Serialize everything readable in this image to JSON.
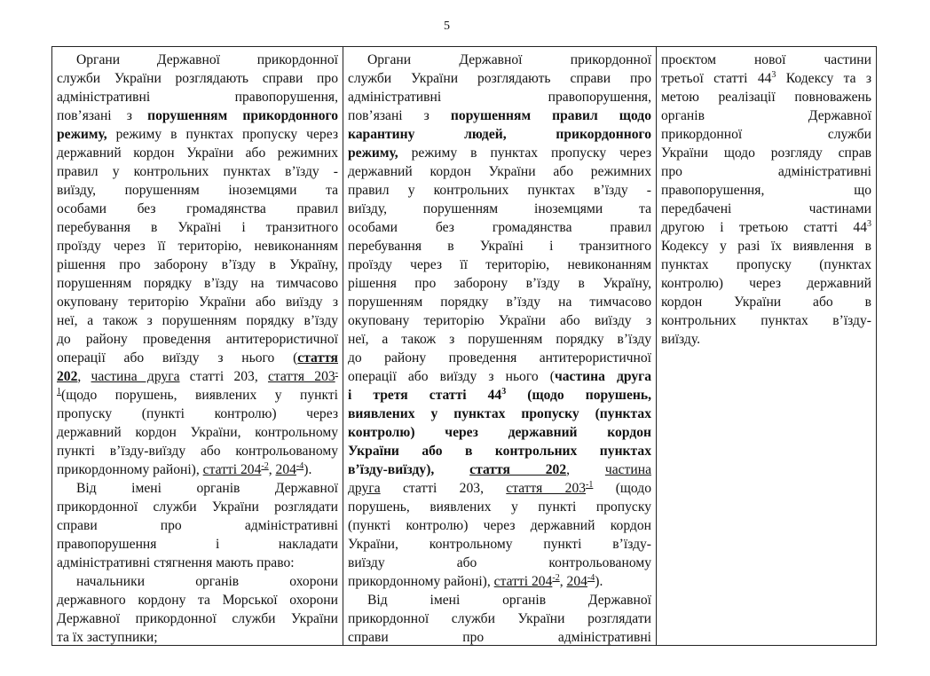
{
  "page_number": "5",
  "columns": [
    {
      "paragraphs": [
        {
          "lines": [
            [
              "Органи Державної прикордонної"
            ],
            [
              "служби України розглядають справи про"
            ],
            [
              "адміністративні правопорушення,"
            ],
            [
              "пов’язані з ",
              {
                "t": "порушенням прикордонного",
                "b": true
              }
            ],
            [
              {
                "t": "режиму,",
                "b": true
              },
              " режиму в пунктах пропуску через"
            ],
            [
              "державний кордон України або режимних"
            ],
            [
              "правил у контрольних пунктах в’їзду -"
            ],
            [
              "виїзду, порушенням іноземцями та"
            ],
            [
              "особами без громадянства правил"
            ],
            [
              "перебування в Україні і транзитного"
            ],
            [
              "проїзду через її територію, невиконанням"
            ],
            [
              "рішення про заборону в’їзду в Україну,"
            ],
            [
              "порушенням порядку в’їзду на тимчасово"
            ],
            [
              "окуповану територію України або виїзду з"
            ],
            [
              "неї, а також з порушенням порядку в’їзду"
            ],
            [
              "до району проведення антитерористичної"
            ],
            [
              "операції або виїзду з нього (",
              {
                "t": "стаття",
                "b": true,
                "u": true
              }
            ],
            [
              {
                "t": "202",
                "b": true,
                "u": true
              },
              ", ",
              {
                "t": "частина друга",
                "u": true
              },
              " статті 203, ",
              {
                "t": "стаття 203",
                "u": true
              },
              {
                "t": "-",
                "sup": true,
                "u": true
              }
            ],
            [
              {
                "t": "1",
                "sup": true,
                "u": true
              },
              "(щодо порушень, виявлених у пункті"
            ],
            [
              "пропуску (пункті контролю) через"
            ],
            [
              "державний кордон України, контрольному"
            ],
            [
              "пункті в’їзду-виїзду або контрольованому"
            ],
            [
              "прикордонному районі), ",
              {
                "t": "статті 204",
                "u": true
              },
              {
                "t": "-2",
                "sup": true,
                "u": true
              },
              ", ",
              {
                "t": "204",
                "u": true
              },
              {
                "t": "-4",
                "sup": true,
                "u": true
              },
              ")."
            ]
          ]
        },
        {
          "lines": [
            [
              "Від імені органів Державної"
            ],
            [
              "прикордонної служби України розглядати"
            ],
            [
              "справи про адміністративні"
            ],
            [
              "правопорушення і накладати"
            ],
            [
              "адміністративні стягнення мають право:"
            ]
          ]
        },
        {
          "lines": [
            [
              "начальники органів охорони"
            ],
            [
              "державного кордону та Морської охорони"
            ],
            [
              "Державної прикордонної служби України"
            ],
            [
              "та їх заступники;"
            ]
          ]
        }
      ]
    },
    {
      "paragraphs": [
        {
          "lines": [
            [
              "Органи Державної прикордонної"
            ],
            [
              "служби України розглядають справи про"
            ],
            [
              "адміністративні правопорушення,"
            ],
            [
              "пов’язані з ",
              {
                "t": "порушенням правил щодо",
                "b": true
              }
            ],
            [
              {
                "t": "карантину людей, прикордонного",
                "b": true
              }
            ],
            [
              {
                "t": "режиму,",
                "b": true
              },
              " режиму в пунктах пропуску через"
            ],
            [
              "державний кордон України або режимних"
            ],
            [
              "правил у контрольних пунктах в’їзду -"
            ],
            [
              "виїзду, порушенням іноземцями та"
            ],
            [
              "особами без громадянства правил"
            ],
            [
              "перебування в Україні і транзитного"
            ],
            [
              "проїзду через її територію, невиконанням"
            ],
            [
              "рішення про заборону в’їзду в Україну,"
            ],
            [
              "порушенням порядку в’їзду на тимчасово"
            ],
            [
              "окуповану територію України або виїзду з"
            ],
            [
              "неї, а також з порушенням порядку в’їзду"
            ],
            [
              "до району проведення антитерористичної"
            ],
            [
              "операції або виїзду з нього (",
              {
                "t": "частина друга",
                "b": true
              }
            ],
            [
              {
                "t": "і третя статті 44",
                "b": true
              },
              {
                "t": "3",
                "sup": true,
                "b": true
              },
              {
                "t": " (щодо порушень,",
                "b": true
              }
            ],
            [
              {
                "t": "виявлених у пунктах пропуску (пунктах",
                "b": true
              }
            ],
            [
              {
                "t": "контролю) через державний кордон",
                "b": true
              }
            ],
            [
              {
                "t": "України або в контрольних пунктах",
                "b": true
              }
            ],
            [
              {
                "t": "в’їзду-виїзду),",
                "b": true
              },
              " ",
              {
                "t": "стаття 202",
                "b": true,
                "u": true
              },
              ", ",
              {
                "t": "частина",
                "u": true
              }
            ],
            [
              {
                "t": "друга",
                "u": true
              },
              " статті 203, ",
              {
                "t": "стаття 203",
                "u": true
              },
              {
                "t": "-1",
                "sup": true,
                "u": true
              },
              " (щодо"
            ],
            [
              "порушень, виявлених у пункті пропуску"
            ],
            [
              "(пункті контролю) через державний кордон"
            ],
            [
              "України, контрольному пункті в’їзду-"
            ],
            [
              "виїзду або контрольованому"
            ],
            [
              "прикордонному районі), ",
              {
                "t": "статті 204",
                "u": true
              },
              {
                "t": "-2",
                "sup": true,
                "u": true
              },
              ", ",
              {
                "t": "204",
                "u": true
              },
              {
                "t": "-4",
                "sup": true,
                "u": true
              },
              ")."
            ]
          ]
        },
        {
          "continues": true,
          "lines": [
            [
              "Від імені органів Державної"
            ],
            [
              "прикордонної служби України розглядати"
            ],
            [
              "справи про адміністративні"
            ]
          ]
        }
      ]
    },
    {
      "paragraphs": [
        {
          "continued": true,
          "lines": [
            [
              "проєктом нової частини"
            ],
            [
              "третьої статті 44",
              {
                "t": "3",
                "sup": true
              },
              " Кодексу та з"
            ],
            [
              "метою реалізації повноважень"
            ],
            [
              "органів Державної"
            ],
            [
              "прикордонної служби"
            ],
            [
              "України щодо розгляду справ"
            ],
            [
              "про адміністративні"
            ],
            [
              "правопорушення, що"
            ],
            [
              "передбачені частинами"
            ],
            [
              "другою і третьою статті 44",
              {
                "t": "3",
                "sup": true
              }
            ],
            [
              "Кодексу у разі їх виявлення в"
            ],
            [
              "пунктах пропуску (пунктах"
            ],
            [
              "контролю) через державний"
            ],
            [
              "кордон України або в"
            ],
            [
              "контрольних пунктах в’їзду-"
            ],
            [
              "виїзду."
            ]
          ]
        }
      ]
    }
  ]
}
